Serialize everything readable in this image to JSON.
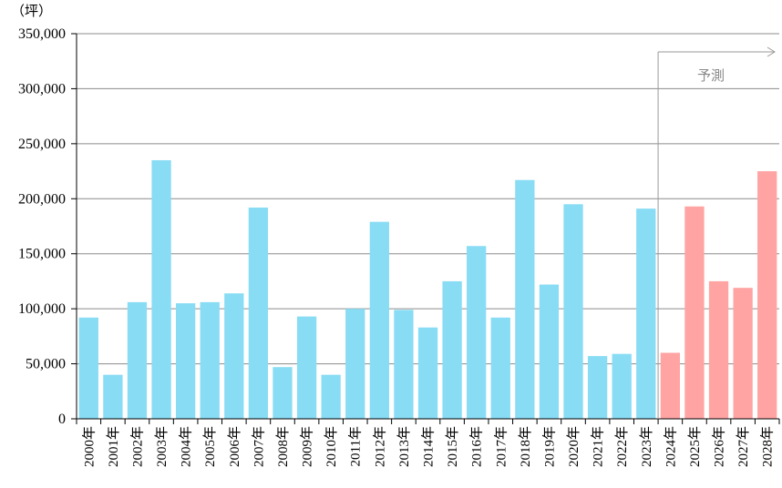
{
  "chart_data": {
    "type": "bar",
    "unit_label": "（坪）",
    "ylim": [
      0,
      350000
    ],
    "y_ticks": [
      "0",
      "50,000",
      "100,000",
      "150,000",
      "200,000",
      "250,000",
      "300,000",
      "350,000"
    ],
    "y_tick_values": [
      0,
      50000,
      100000,
      150000,
      200000,
      250000,
      300000,
      350000
    ],
    "grid": true,
    "categories": [
      "2000年",
      "2001年",
      "2002年",
      "2003年",
      "2004年",
      "2005年",
      "2006年",
      "2007年",
      "2008年",
      "2009年",
      "2010年",
      "2011年",
      "2012年",
      "2013年",
      "2014年",
      "2015年",
      "2016年",
      "2017年",
      "2018年",
      "2019年",
      "2020年",
      "2021年",
      "2022年",
      "2023年",
      "2024年",
      "2025年",
      "2026年",
      "2027年",
      "2028年"
    ],
    "values": [
      92000,
      40000,
      106000,
      235000,
      105000,
      106000,
      114000,
      192000,
      47000,
      93000,
      40000,
      100000,
      179000,
      99000,
      83000,
      125000,
      157000,
      92000,
      217000,
      122000,
      195000,
      57000,
      59000,
      191000,
      60000,
      193000,
      125000,
      119000,
      225000
    ],
    "forecast_start_index": 24,
    "forecast_label": "予測",
    "colors": {
      "actual": "#88dcf4",
      "forecast": "#ffa3a3",
      "grid": "#8c8c8c",
      "annotation": "#9a9a9a"
    }
  }
}
